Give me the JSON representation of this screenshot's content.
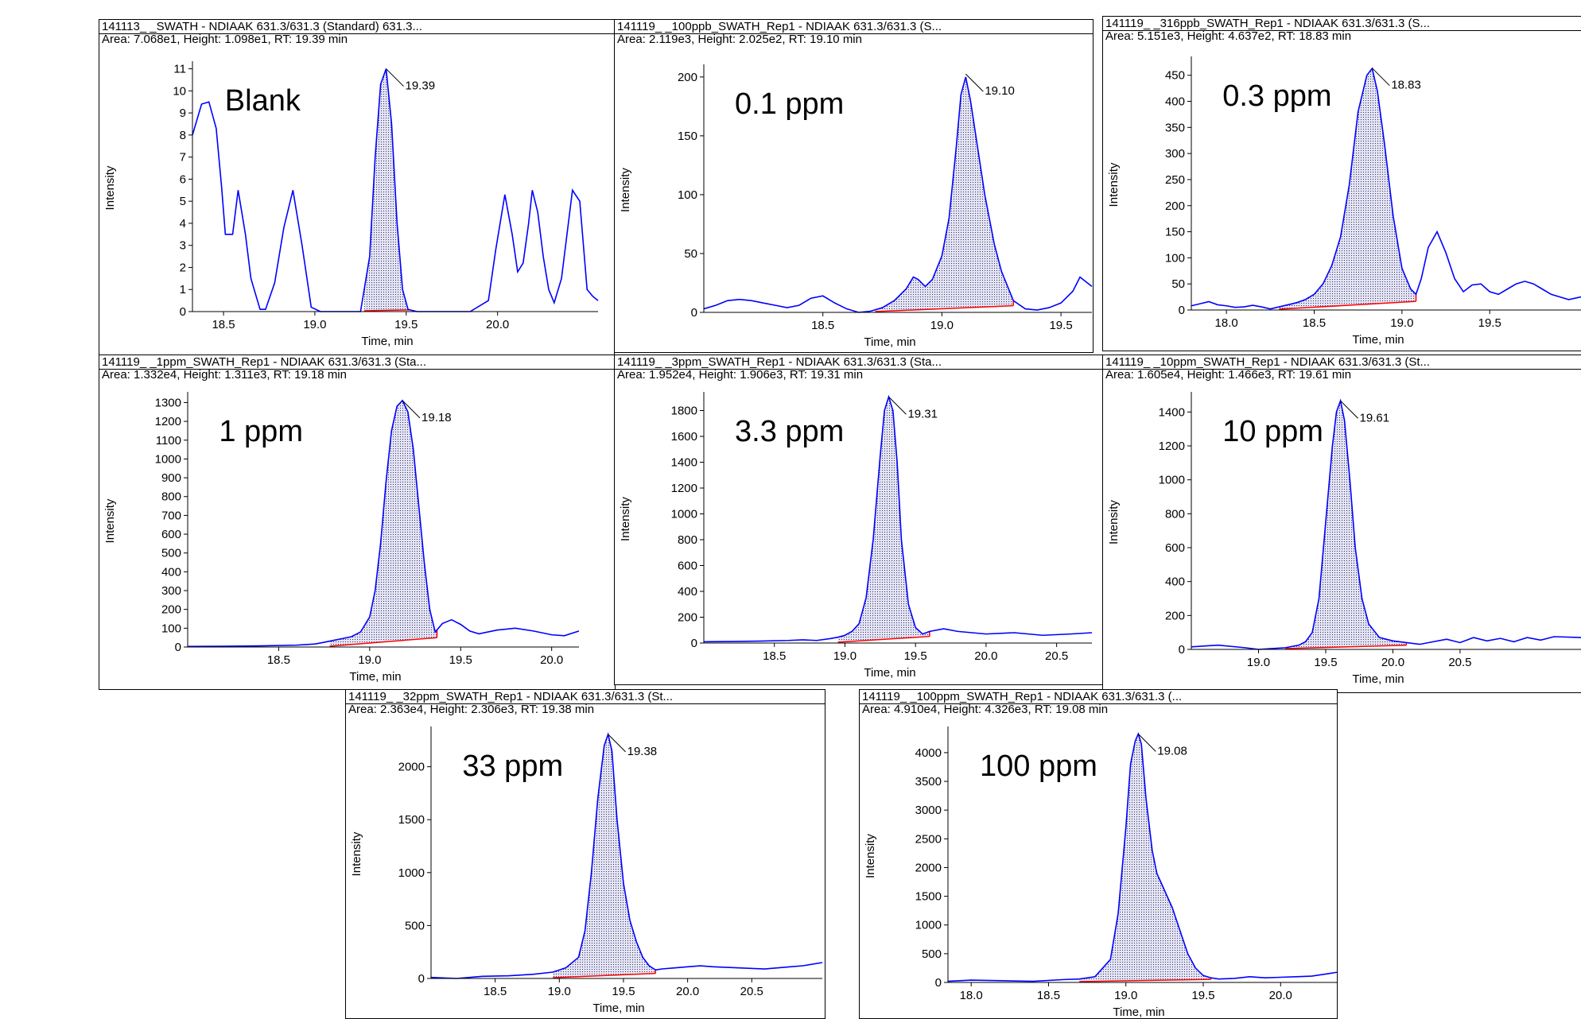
{
  "colors": {
    "trace": "#0000ff",
    "baseline": "#ff0000",
    "fill": "#b8b8d8",
    "axis": "#000000"
  },
  "chart_data": [
    {
      "type": "line",
      "title": "141113_                    _SWATH - NDIAAK 631.3/631.3 (Standard) 631.3...",
      "info": "Area: 7.068e1, Height: 1.098e1, RT: 19.39 min",
      "label": "Blank",
      "xlabel": "Time, min",
      "ylabel": "Intensity",
      "xlim": [
        18.33,
        20.55
      ],
      "ylim": [
        0,
        11.2
      ],
      "xticks": [
        18.5,
        19.0,
        19.5,
        20.0
      ],
      "xtick_labels": [
        "18.5",
        "19.0",
        "19.5",
        "20.0"
      ],
      "yticks": [
        0,
        1,
        2,
        3,
        4,
        5,
        6,
        7,
        8,
        9,
        10,
        11
      ],
      "ytick_labels": [
        "0",
        "1",
        "2",
        "3",
        "4",
        "5",
        "6",
        "7",
        "8",
        "9",
        "10",
        "11"
      ],
      "peak": {
        "rt": 19.39,
        "height": 11.0,
        "label": "19.39"
      },
      "area": [
        19.27,
        19.52
      ],
      "x": [
        18.33,
        18.38,
        18.42,
        18.46,
        18.49,
        18.51,
        18.55,
        18.58,
        18.62,
        18.65,
        18.7,
        18.73,
        18.78,
        18.83,
        18.88,
        18.93,
        18.98,
        19.03,
        19.1,
        19.25,
        19.3,
        19.33,
        19.36,
        19.39,
        19.42,
        19.45,
        19.48,
        19.51,
        19.56,
        19.62,
        19.7,
        19.85,
        19.95,
        19.99,
        20.04,
        20.08,
        20.11,
        20.14,
        20.17,
        20.19,
        20.22,
        20.25,
        20.28,
        20.31,
        20.35,
        20.38,
        20.41,
        20.45,
        20.49,
        20.52,
        20.55
      ],
      "y": [
        8.0,
        9.4,
        9.5,
        8.3,
        5.6,
        3.5,
        3.5,
        5.5,
        3.5,
        1.5,
        0.1,
        0.1,
        1.3,
        3.8,
        5.5,
        3.0,
        0.2,
        0,
        0,
        0,
        2.5,
        7.0,
        10.3,
        11.0,
        8.5,
        4.0,
        1.0,
        0.1,
        0,
        0,
        0,
        0,
        0.5,
        2.8,
        5.3,
        3.5,
        1.8,
        2.2,
        4.0,
        5.5,
        4.5,
        2.5,
        1.0,
        0.4,
        1.5,
        3.5,
        5.5,
        5.0,
        1.0,
        0.7,
        0.5
      ]
    },
    {
      "type": "line",
      "title": "141119_                    _100ppb_SWATH_Rep1 - NDIAAK 631.3/631.3 (S...",
      "info": "Area: 2.119e3, Height: 2.025e2, RT: 19.10 min",
      "label": "0.1 ppm",
      "xlabel": "Time, min",
      "ylabel": "Intensity",
      "xlim": [
        18.0,
        19.63
      ],
      "ylim": [
        0,
        208
      ],
      "xticks": [
        18.5,
        19.0,
        19.5
      ],
      "xtick_labels": [
        "18.5",
        "19.0",
        "19.5"
      ],
      "yticks": [
        0,
        50,
        100,
        150,
        200
      ],
      "ytick_labels": [
        "0",
        "50",
        "100",
        "150",
        "200"
      ],
      "peak": {
        "rt": 19.1,
        "height": 202.5,
        "label": "19.10"
      },
      "area": [
        18.72,
        19.3
      ],
      "x": [
        18.0,
        18.05,
        18.1,
        18.15,
        18.2,
        18.25,
        18.3,
        18.35,
        18.4,
        18.45,
        18.5,
        18.55,
        18.6,
        18.65,
        18.7,
        18.75,
        18.8,
        18.85,
        18.88,
        18.9,
        18.93,
        18.96,
        19.0,
        19.03,
        19.06,
        19.08,
        19.1,
        19.12,
        19.15,
        19.18,
        19.22,
        19.25,
        19.3,
        19.35,
        19.4,
        19.45,
        19.5,
        19.55,
        19.58,
        19.63
      ],
      "y": [
        3,
        6,
        10,
        11,
        10,
        8,
        6,
        4,
        6,
        12,
        14,
        8,
        3,
        0,
        1,
        4,
        10,
        20,
        30,
        28,
        22,
        28,
        48,
        80,
        140,
        185,
        200,
        180,
        140,
        100,
        58,
        35,
        10,
        3,
        2,
        4,
        8,
        18,
        30,
        22
      ]
    },
    {
      "type": "line",
      "title": "141119_                    _316ppb_SWATH_Rep1 - NDIAAK 631.3/631.3 (S...",
      "info": "Area: 5.151e3, Height: 4.637e2, RT: 18.83 min",
      "label": "0.3 ppm",
      "xlabel": "Time, min",
      "ylabel": "Intensity",
      "xlim": [
        17.8,
        20.02
      ],
      "ylim": [
        0,
        480
      ],
      "xticks": [
        18.0,
        18.5,
        19.0,
        19.5
      ],
      "xtick_labels": [
        "18.0",
        "18.5",
        "19.0",
        "19.5"
      ],
      "yticks": [
        0,
        50,
        100,
        150,
        200,
        250,
        300,
        350,
        400,
        450
      ],
      "ytick_labels": [
        "0",
        "50",
        "100",
        "150",
        "200",
        "250",
        "300",
        "350",
        "400",
        "450"
      ],
      "peak": {
        "rt": 18.83,
        "height": 463.7,
        "label": "18.83"
      },
      "area": [
        18.3,
        19.08
      ],
      "x": [
        17.8,
        17.85,
        17.9,
        17.95,
        18.0,
        18.05,
        18.1,
        18.15,
        18.2,
        18.25,
        18.3,
        18.35,
        18.4,
        18.45,
        18.5,
        18.55,
        18.6,
        18.65,
        18.7,
        18.75,
        18.8,
        18.83,
        18.86,
        18.9,
        18.95,
        19.0,
        19.05,
        19.08,
        19.11,
        19.15,
        19.2,
        19.25,
        19.3,
        19.35,
        19.4,
        19.45,
        19.5,
        19.55,
        19.6,
        19.65,
        19.7,
        19.75,
        19.8,
        19.85,
        19.9,
        19.95,
        20.02
      ],
      "y": [
        8,
        12,
        16,
        10,
        8,
        5,
        6,
        9,
        6,
        2,
        6,
        10,
        14,
        20,
        30,
        50,
        85,
        140,
        240,
        380,
        450,
        463,
        420,
        320,
        180,
        80,
        40,
        30,
        60,
        120,
        150,
        110,
        60,
        35,
        48,
        50,
        35,
        30,
        40,
        50,
        55,
        50,
        40,
        30,
        25,
        20,
        25
      ]
    },
    {
      "type": "line",
      "title": "141119_                    _1ppm_SWATH_Rep1 - NDIAAK 631.3/631.3 (Sta...",
      "info": "Area: 1.332e4, Height: 1.311e3, RT: 19.18 min",
      "label": "1 ppm",
      "xlabel": "Time, min",
      "ylabel": "Intensity",
      "xlim": [
        18.0,
        20.15
      ],
      "ylim": [
        0,
        1340
      ],
      "xticks": [
        18.5,
        19.0,
        19.5,
        20.0
      ],
      "xtick_labels": [
        "18.5",
        "19.0",
        "19.5",
        "20.0"
      ],
      "yticks": [
        0,
        100,
        200,
        300,
        400,
        500,
        600,
        700,
        800,
        900,
        1000,
        1100,
        1200,
        1300
      ],
      "ytick_labels": [
        "0",
        "100",
        "200",
        "300",
        "400",
        "500",
        "600",
        "700",
        "800",
        "900",
        "1000",
        "1100",
        "1200",
        "1300"
      ],
      "peak": {
        "rt": 19.18,
        "height": 1311,
        "label": "19.18"
      },
      "area": [
        18.78,
        19.37
      ],
      "x": [
        18.0,
        18.2,
        18.4,
        18.6,
        18.7,
        18.75,
        18.8,
        18.85,
        18.9,
        18.95,
        19.0,
        19.03,
        19.06,
        19.09,
        19.12,
        19.15,
        19.18,
        19.21,
        19.24,
        19.27,
        19.3,
        19.33,
        19.36,
        19.4,
        19.45,
        19.5,
        19.55,
        19.6,
        19.7,
        19.8,
        19.9,
        20.0,
        20.07,
        20.15
      ],
      "y": [
        3,
        4,
        6,
        10,
        16,
        25,
        35,
        45,
        55,
        80,
        160,
        300,
        550,
        880,
        1150,
        1280,
        1311,
        1250,
        1050,
        750,
        450,
        200,
        80,
        125,
        145,
        120,
        85,
        70,
        90,
        100,
        85,
        65,
        60,
        85
      ]
    },
    {
      "type": "line",
      "title": "141119_                    _3ppm_SWATH_Rep1 - NDIAAK 631.3/631.3 (Sta...",
      "info": "Area: 1.952e4, Height: 1.906e3, RT: 19.31 min",
      "label": "3.3 ppm",
      "xlabel": "Time, min",
      "ylabel": "Intensity",
      "xlim": [
        18.0,
        20.75
      ],
      "ylim": [
        0,
        1920
      ],
      "xticks": [
        18.5,
        19.0,
        19.5,
        20.0,
        20.5
      ],
      "xtick_labels": [
        "18.5",
        "19.0",
        "19.5",
        "20.0",
        "20.5"
      ],
      "yticks": [
        0,
        200,
        400,
        600,
        800,
        1000,
        1200,
        1400,
        1600,
        1800
      ],
      "ytick_labels": [
        "0",
        "200",
        "400",
        "600",
        "800",
        "1000",
        "1200",
        "1400",
        "1600",
        "1800"
      ],
      "peak": {
        "rt": 19.31,
        "height": 1906,
        "label": "19.31"
      },
      "area": [
        18.95,
        19.6
      ],
      "x": [
        18.0,
        18.2,
        18.4,
        18.6,
        18.7,
        18.8,
        18.9,
        18.95,
        19.0,
        19.05,
        19.1,
        19.15,
        19.2,
        19.25,
        19.28,
        19.31,
        19.34,
        19.37,
        19.4,
        19.45,
        19.5,
        19.55,
        19.6,
        19.7,
        19.8,
        19.9,
        20.0,
        20.2,
        20.4,
        20.6,
        20.75
      ],
      "y": [
        10,
        12,
        15,
        20,
        25,
        20,
        35,
        45,
        60,
        90,
        150,
        350,
        800,
        1450,
        1800,
        1906,
        1800,
        1400,
        800,
        300,
        120,
        70,
        90,
        110,
        90,
        80,
        70,
        80,
        60,
        70,
        80
      ]
    },
    {
      "type": "line",
      "title": "141119_                    _10ppm_SWATH_Rep1 - NDIAAK 631.3/631.3 (St...",
      "info": "Area: 1.605e4, Height: 1.466e3, RT: 19.61 min",
      "label": "10 ppm",
      "xlabel": "Time, min",
      "ylabel": "Intensity",
      "xlim": [
        18.5,
        21.4
      ],
      "ylim": [
        0,
        1500
      ],
      "xticks": [
        19.0,
        19.5,
        20.0,
        20.5
      ],
      "xtick_labels": [
        "19.0",
        "19.5",
        "20.0",
        "20.5"
      ],
      "yticks": [
        0,
        200,
        400,
        600,
        800,
        1000,
        1200,
        1400
      ],
      "ytick_labels": [
        "0",
        "200",
        "400",
        "600",
        "800",
        "1000",
        "1200",
        "1400"
      ],
      "peak": {
        "rt": 19.61,
        "height": 1466,
        "label": "19.61"
      },
      "area": [
        19.2,
        20.1
      ],
      "x": [
        18.5,
        18.7,
        18.9,
        19.0,
        19.1,
        19.2,
        19.3,
        19.35,
        19.4,
        19.45,
        19.5,
        19.55,
        19.58,
        19.61,
        19.64,
        19.68,
        19.72,
        19.77,
        19.82,
        19.9,
        20.0,
        20.1,
        20.2,
        20.3,
        20.4,
        20.5,
        20.6,
        20.7,
        20.8,
        20.9,
        21.0,
        21.1,
        21.2,
        21.4
      ],
      "y": [
        15,
        25,
        10,
        0,
        5,
        10,
        25,
        45,
        100,
        300,
        750,
        1200,
        1400,
        1466,
        1350,
        1000,
        600,
        300,
        150,
        70,
        50,
        40,
        30,
        45,
        60,
        40,
        70,
        50,
        65,
        45,
        70,
        55,
        75,
        70
      ]
    },
    {
      "type": "line",
      "title": "141119_                    _32ppm_SWATH_Rep1 - NDIAAK 631.3/631.3 (St...",
      "info": "Area: 2.363e4, Height: 2.306e3, RT: 19.38 min",
      "label": "33 ppm",
      "xlabel": "Time, min",
      "ylabel": "Intensity",
      "xlim": [
        18.0,
        21.05
      ],
      "ylim": [
        0,
        2350
      ],
      "xticks": [
        18.5,
        19.0,
        19.5,
        20.0,
        20.5
      ],
      "xtick_labels": [
        "18.5",
        "19.0",
        "19.5",
        "20.0",
        "20.5"
      ],
      "yticks": [
        0,
        500,
        1000,
        1500,
        2000
      ],
      "ytick_labels": [
        "0",
        "500",
        "1000",
        "1500",
        "2000"
      ],
      "peak": {
        "rt": 19.38,
        "height": 2306,
        "label": "19.38"
      },
      "area": [
        18.95,
        19.75
      ],
      "x": [
        18.0,
        18.2,
        18.4,
        18.6,
        18.8,
        18.95,
        19.05,
        19.15,
        19.2,
        19.25,
        19.3,
        19.35,
        19.38,
        19.41,
        19.45,
        19.5,
        19.55,
        19.6,
        19.65,
        19.7,
        19.75,
        19.8,
        19.9,
        20.0,
        20.1,
        20.2,
        20.4,
        20.6,
        20.8,
        20.9,
        21.05
      ],
      "y": [
        10,
        0,
        20,
        25,
        40,
        60,
        100,
        200,
        450,
        1000,
        1700,
        2200,
        2306,
        2150,
        1500,
        900,
        550,
        350,
        200,
        120,
        80,
        90,
        100,
        110,
        120,
        110,
        100,
        90,
        110,
        120,
        150
      ]
    },
    {
      "type": "line",
      "title": "141119_                    _100ppm_SWATH_Rep1 - NDIAAK 631.3/631.3 (...",
      "info": "Area: 4.910e4, Height: 4.326e3, RT: 19.08 min",
      "label": "100 ppm",
      "xlabel": "Time, min",
      "ylabel": "Intensity",
      "xlim": [
        17.85,
        20.42
      ],
      "ylim": [
        0,
        4400
      ],
      "xticks": [
        18.0,
        18.5,
        19.0,
        19.5,
        20.0
      ],
      "xtick_labels": [
        "18.0",
        "18.5",
        "19.0",
        "19.5",
        "20.0"
      ],
      "yticks": [
        0,
        500,
        1000,
        1500,
        2000,
        2500,
        3000,
        3500,
        4000
      ],
      "ytick_labels": [
        "0",
        "500",
        "1000",
        "1500",
        "2000",
        "2500",
        "3000",
        "3500",
        "4000"
      ],
      "peak": {
        "rt": 19.08,
        "height": 4326,
        "label": "19.08"
      },
      "area": [
        18.7,
        19.55
      ],
      "x": [
        17.85,
        18.0,
        18.2,
        18.4,
        18.6,
        18.7,
        18.8,
        18.9,
        18.95,
        19.0,
        19.03,
        19.06,
        19.08,
        19.1,
        19.13,
        19.17,
        19.2,
        19.25,
        19.3,
        19.35,
        19.4,
        19.45,
        19.5,
        19.55,
        19.6,
        19.7,
        19.8,
        19.9,
        20.0,
        20.1,
        20.2,
        20.3,
        20.42
      ],
      "y": [
        20,
        40,
        30,
        20,
        50,
        60,
        100,
        400,
        1200,
        2700,
        3800,
        4200,
        4326,
        4150,
        3200,
        2300,
        1900,
        1600,
        1300,
        900,
        500,
        250,
        120,
        80,
        60,
        70,
        100,
        80,
        90,
        100,
        110,
        150,
        200
      ]
    }
  ]
}
